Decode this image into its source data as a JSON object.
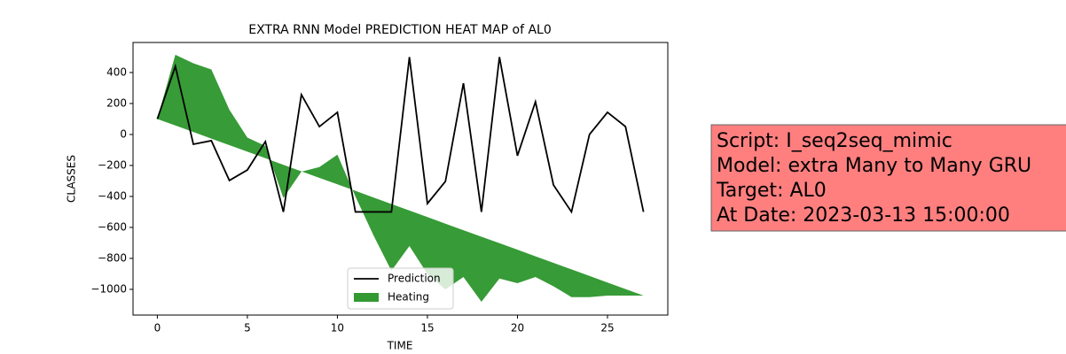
{
  "chart_data": {
    "type": "line",
    "title": "EXTRA RNN Model PREDICTION HEAT MAP of AL0",
    "x_label": "TIME",
    "y_label": "CLASSES",
    "x": [
      0,
      1,
      2,
      3,
      4,
      5,
      6,
      7,
      8,
      9,
      10,
      11,
      12,
      13,
      14,
      15,
      16,
      17,
      18,
      19,
      20,
      21,
      22,
      23,
      24,
      25,
      26,
      27
    ],
    "series": [
      {
        "name": "Prediction",
        "type": "line",
        "color": "#000000",
        "values": [
          100,
          440,
          -63,
          -40,
          -297,
          -229,
          -46,
          -500,
          257,
          51,
          143,
          -500,
          -500,
          -500,
          500,
          -446,
          -303,
          331,
          -500,
          500,
          -137,
          211,
          -326,
          -500,
          0,
          143,
          51,
          -500
        ]
      },
      {
        "name": "Heating",
        "type": "area",
        "color": "#339933",
        "values": [
          100,
          515,
          460,
          420,
          160,
          -20,
          -74,
          -410,
          -240,
          -210,
          -130,
          -400,
          -650,
          -880,
          -720,
          -900,
          -1000,
          -920,
          -1080,
          -930,
          -960,
          -920,
          -980,
          -1050,
          -1050,
          -1040,
          -1040,
          -1040
        ],
        "base": [
          100,
          58,
          16,
          -27,
          -69,
          -111,
          -153,
          -196,
          -238,
          -280,
          -322,
          -364,
          -407,
          -449,
          -491,
          -533,
          -576,
          -618,
          -660,
          -702,
          -744,
          -787,
          -829,
          -871,
          -913,
          -956,
          -998,
          -1040
        ]
      }
    ],
    "xlim": [
      -1.35,
      28.35
    ],
    "xticks": [
      0,
      5,
      10,
      15,
      20,
      25
    ],
    "ylim": [
      -1166,
      594
    ],
    "yticks": [
      {
        "value": -1000,
        "label": "−1000"
      },
      {
        "value": -800,
        "label": "−800"
      },
      {
        "value": -600,
        "label": "−600"
      },
      {
        "value": -400,
        "label": "−400"
      },
      {
        "value": -200,
        "label": "−200"
      },
      0,
      200,
      400
    ],
    "legend": "lower center",
    "annotation": {
      "lines": [
        "Script: I_seq2seq_mimic",
        "Model: extra Many to Many GRU",
        "Target: AL0",
        "At Date: 2023-03-13 15:00:00"
      ],
      "color": "#ff7f7f"
    }
  }
}
